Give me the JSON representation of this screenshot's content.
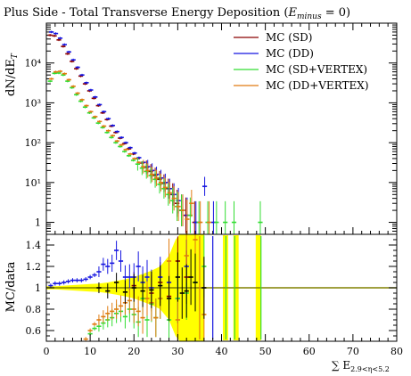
{
  "title_main": "Plus Side - Total Transverse Energy Deposition (",
  "title_var": "E",
  "title_sub": "minus",
  "title_eq": " = 0)",
  "ylabel_top": "dN/dE",
  "ylabel_top_sub": "T",
  "ylabel_bottom": "MC/data",
  "xlabel": "∑ E",
  "xlabel_sub": "2.9<η<5.2",
  "colors": {
    "SD": "#8b0000",
    "DD": "#1515e0",
    "SDV": "#33dd33",
    "DDV": "#e07b10",
    "data": "#000000",
    "band": "#ffff00",
    "band_edge": "#eeee55",
    "unity": "#808000"
  },
  "chart_data": [
    {
      "type": "scatter",
      "panel": "top",
      "scale_y": "log",
      "xlim": [
        0,
        80
      ],
      "ylim": [
        0.5,
        100000
      ],
      "yticks": [
        {
          "v": 1,
          "label": "1"
        },
        {
          "v": 10,
          "label": "10¹"
        },
        {
          "v": 100,
          "label": "10²"
        },
        {
          "v": 1000,
          "label": "10³"
        },
        {
          "v": 10000,
          "label": "10⁴"
        }
      ],
      "legend_position": "top-right",
      "series": [
        {
          "name": "MC (SD)",
          "key": "SD",
          "x": [
            1,
            2,
            3,
            4,
            5,
            6,
            7,
            8,
            9,
            10,
            11,
            12,
            13,
            14,
            15,
            16,
            17,
            18,
            19,
            20,
            21,
            22,
            23,
            24,
            25,
            26,
            27,
            28,
            29,
            30,
            31,
            32,
            34
          ],
          "y": [
            50000,
            48000,
            38000,
            26000,
            17000,
            11000,
            7200,
            4700,
            3000,
            2000,
            1300,
            850,
            560,
            380,
            260,
            180,
            130,
            95,
            70,
            52,
            40,
            31,
            24,
            19,
            15,
            12,
            9.5,
            7,
            5,
            3,
            2,
            1.5,
            1
          ]
        },
        {
          "name": "MC (DD)",
          "key": "DD",
          "x": [
            1,
            2,
            3,
            4,
            5,
            6,
            7,
            8,
            9,
            10,
            11,
            12,
            13,
            14,
            15,
            16,
            17,
            18,
            19,
            20,
            21,
            22,
            23,
            24,
            25,
            26,
            27,
            28,
            29,
            30,
            31,
            32,
            34,
            36,
            38
          ],
          "y": [
            60000,
            55000,
            42000,
            29000,
            19000,
            12000,
            7800,
            5000,
            3200,
            2100,
            1400,
            900,
            600,
            400,
            270,
            190,
            135,
            100,
            75,
            55,
            42,
            32,
            25,
            20,
            16,
            13,
            10,
            7,
            5,
            3.5,
            2,
            1.5,
            1,
            8,
            1
          ]
        },
        {
          "name": "MC (SD+VERTEX)",
          "key": "SDV",
          "x": [
            1,
            2,
            3,
            4,
            5,
            6,
            7,
            8,
            9,
            10,
            11,
            12,
            13,
            14,
            15,
            16,
            17,
            18,
            19,
            20,
            21,
            22,
            23,
            24,
            25,
            26,
            27,
            28,
            29,
            30,
            31,
            33,
            35,
            37,
            39,
            41,
            43,
            49
          ],
          "y": [
            3500,
            5500,
            5600,
            5000,
            3500,
            2400,
            1600,
            1100,
            780,
            560,
            420,
            310,
            240,
            180,
            135,
            100,
            80,
            60,
            47,
            36,
            29,
            23,
            19,
            15,
            12,
            9,
            7,
            5,
            3.5,
            2.5,
            2,
            1.5,
            1,
            1,
            1,
            1,
            1,
            1
          ]
        },
        {
          "name": "MC (DD+VERTEX)",
          "key": "DDV",
          "x": [
            1,
            2,
            3,
            4,
            5,
            6,
            7,
            8,
            9,
            10,
            11,
            12,
            13,
            14,
            15,
            16,
            17,
            18,
            19,
            20,
            21,
            22,
            23,
            24,
            25,
            26,
            27,
            28,
            29,
            30,
            31,
            32,
            33,
            35,
            37
          ],
          "y": [
            4000,
            6000,
            6200,
            5400,
            3800,
            2600,
            1750,
            1200,
            850,
            600,
            450,
            340,
            260,
            200,
            150,
            110,
            88,
            67,
            52,
            40,
            32,
            25,
            20,
            16,
            13,
            10,
            7.5,
            5.5,
            4,
            2.5,
            2,
            1.2,
            3,
            1,
            1
          ]
        }
      ]
    },
    {
      "type": "scatter",
      "panel": "bottom",
      "xlim": [
        0,
        80
      ],
      "ylim": [
        0.5,
        1.5
      ],
      "yticks": [
        {
          "v": 0.6,
          "label": "0.6"
        },
        {
          "v": 0.8,
          "label": "0.8"
        },
        {
          "v": 1.0,
          "label": "1"
        },
        {
          "v": 1.2,
          "label": "1.2"
        },
        {
          "v": 1.4,
          "label": "1.4"
        }
      ],
      "xticks": [
        {
          "v": 0,
          "label": "0"
        },
        {
          "v": 10,
          "label": "10"
        },
        {
          "v": 20,
          "label": "20"
        },
        {
          "v": 30,
          "label": "30"
        },
        {
          "v": 40,
          "label": "40"
        },
        {
          "v": 50,
          "label": "50"
        },
        {
          "v": 60,
          "label": "60"
        },
        {
          "v": 70,
          "label": "70"
        },
        {
          "v": 80,
          "label": "80"
        }
      ],
      "band": {
        "x": [
          0,
          2,
          4,
          6,
          8,
          10,
          12,
          14,
          16,
          18,
          20,
          22,
          24,
          26,
          28,
          29.5,
          30.5,
          32,
          34,
          36
        ],
        "half": [
          0.015,
          0.015,
          0.02,
          0.025,
          0.03,
          0.035,
          0.04,
          0.05,
          0.065,
          0.08,
          0.1,
          0.13,
          0.16,
          0.2,
          0.3,
          0.45,
          0.5,
          0.5,
          0.5,
          0.5
        ]
      },
      "band_columns": [
        {
          "x0": 40.3,
          "x1": 41.5
        },
        {
          "x0": 42.7,
          "x1": 43.9
        },
        {
          "x0": 47.8,
          "x1": 49.0
        }
      ],
      "series": [
        {
          "key": "SD",
          "x": [
            20,
            24,
            26,
            28,
            30,
            32
          ],
          "y": [
            1.02,
            0.95,
            1.05,
            0.92,
            1.25,
            1.1
          ]
        },
        {
          "key": "DD",
          "x": [
            1,
            2,
            3,
            4,
            5,
            6,
            7,
            8,
            9,
            10,
            11,
            12,
            13,
            14,
            15,
            16,
            17,
            18,
            19,
            20,
            21,
            22,
            23,
            24,
            26,
            28,
            30,
            32
          ],
          "y": [
            1.02,
            1.04,
            1.04,
            1.05,
            1.06,
            1.07,
            1.07,
            1.07,
            1.08,
            1.1,
            1.12,
            1.15,
            1.22,
            1.2,
            1.23,
            1.35,
            1.25,
            1.1,
            1.1,
            1.1,
            1.2,
            1.05,
            1.1,
            1.0,
            1.1,
            1.05,
            0.9,
            1.2
          ]
        },
        {
          "key": "SDV",
          "x": [
            10,
            11,
            12,
            13,
            14,
            15,
            16,
            17,
            18,
            19,
            20,
            21,
            22,
            23,
            24,
            25,
            26,
            28,
            30,
            32,
            34,
            36
          ],
          "y": [
            0.57,
            0.62,
            0.64,
            0.67,
            0.7,
            0.72,
            0.76,
            0.78,
            0.73,
            0.8,
            0.75,
            0.68,
            0.9,
            0.7,
            0.85,
            0.72,
            0.9,
            0.7,
            0.9,
            0.95,
            1.05,
            1.2
          ]
        },
        {
          "key": "DDV",
          "x": [
            9,
            10,
            11,
            12,
            13,
            14,
            15,
            16,
            17,
            18,
            19,
            20,
            21,
            22,
            23,
            24,
            25,
            26,
            28,
            30,
            32,
            34,
            36
          ],
          "y": [
            0.52,
            0.6,
            0.66,
            0.7,
            0.73,
            0.76,
            0.78,
            0.8,
            0.83,
            0.86,
            0.88,
            0.8,
            0.78,
            0.72,
            0.9,
            0.86,
            0.72,
            0.9,
            1.25,
            0.7,
            1.3,
            1.45,
            0.75
          ]
        },
        {
          "key": "data",
          "x": [
            12,
            14,
            16,
            18,
            20,
            22,
            24,
            26,
            28,
            30,
            31,
            32,
            33,
            34,
            36
          ],
          "y": [
            1.0,
            0.97,
            1.05,
            0.96,
            1.0,
            0.97,
            0.98,
            1.02,
            0.9,
            1.1,
            0.95,
            0.97,
            1.1,
            1.05,
            1.0
          ]
        }
      ]
    }
  ]
}
